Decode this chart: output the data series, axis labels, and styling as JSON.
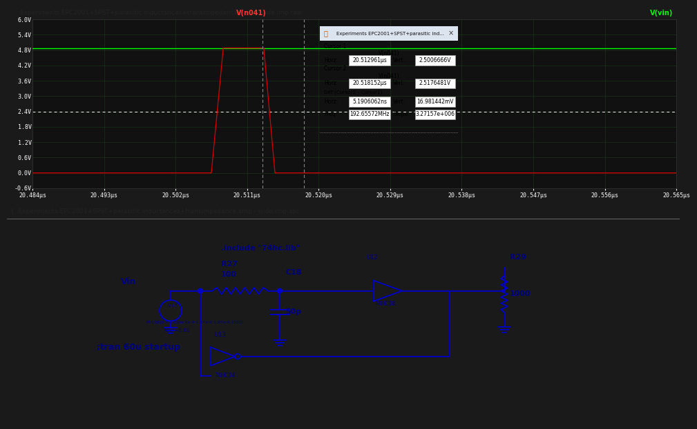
{
  "fig_width": 9.74,
  "fig_height": 6.02,
  "top_bar_bg": "#c8d0dc",
  "top_bar_text": "Experiments EPC2001+SPST+parasitic inductances+transimpedance amp - wide imp.raw",
  "top_bar_text_color": "#222222",
  "plot_bg": "#111111",
  "outer_bg": "#1a1a1a",
  "label_vn041": "V(n041)",
  "label_vvin": "V(vin)",
  "label_vn041_color": "#ff3333",
  "label_vvin_color": "#00ff00",
  "y_ticks": [
    "6.0V",
    "5.4V",
    "4.8V",
    "4.2V",
    "3.6V",
    "3.0V",
    "2.4V",
    "1.8V",
    "1.2V",
    "0.6V",
    "0.0V",
    "-0.6V"
  ],
  "y_values": [
    6.0,
    5.4,
    4.8,
    4.2,
    3.6,
    3.0,
    2.4,
    1.8,
    1.2,
    0.6,
    0.0,
    -0.6
  ],
  "x_ticks": [
    "20.484μs",
    "20.493μs",
    "20.502μs",
    "20.511μs",
    "20.520μs",
    "20.529μs",
    "20.538μs",
    "20.547μs",
    "20.556μs",
    "20.565μs"
  ],
  "x_values": [
    20.484,
    20.493,
    20.502,
    20.511,
    20.52,
    20.529,
    20.538,
    20.547,
    20.556,
    20.565
  ],
  "xmin": 20.484,
  "xmax": 20.565,
  "ymin": -0.6,
  "ymax": 6.0,
  "dotted_line_y": 2.4,
  "cursor1_x": 20.512961,
  "cursor2_x": 20.518152,
  "vvin_level": 4.88,
  "red_rise_start": 20.5065,
  "red_rise_end": 20.508,
  "red_high_end": 20.5131,
  "red_fall_end": 20.5145,
  "dialog_title": "Experiments EPC2001+SPST+parasitic ind...",
  "cursor1_label": "V(n041)",
  "cursor1_horz": "20.512961μs",
  "cursor1_vert": "2.5006666V",
  "cursor2_label": "V(n041)",
  "cursor2_horz": "20.518152μs",
  "cursor2_vert": "2.5176481V",
  "diff_horz": "5.1906062ns",
  "diff_vert": "16.981442mV",
  "freq": "192.65572MHz",
  "slope": "3.27157e+006",
  "schematic_title": "Experiments EPC2001+SPST+parasitic inductances+transimpedance amp - wide imp.asc",
  "schematic_bg": "#aaaaaa",
  "schematic_line_color": "#0000cc",
  "schematic_text_color": "#000080",
  "include_text": ".include \"74hc.lib\"",
  "mid_bar_bg": "#c0ccd8",
  "vin_label": "Vin",
  "r27_label": "R27",
  "r27_val": "100",
  "c18_label": "C18",
  "c18_val": "50p",
  "r29_label": "R29",
  "r29_val": "1000",
  "u12_label": "U12",
  "u13_label": "U13",
  "ic1_label": "74HC08",
  "ic2_label": "74HC04",
  "pulse_text": "PULSE(0 5 0.02m 1e-9 1.07e-6 1.07e-6 1000)",
  "tran_text": ";tran 60u startup",
  "rser_text": "Rser=0.01",
  "v17_text": ".V17"
}
